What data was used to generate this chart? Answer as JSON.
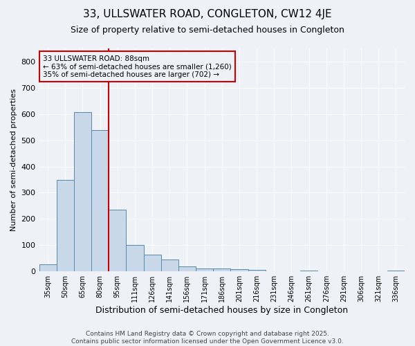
{
  "title": "33, ULLSWATER ROAD, CONGLETON, CW12 4JE",
  "subtitle": "Size of property relative to semi-detached houses in Congleton",
  "xlabel": "Distribution of semi-detached houses by size in Congleton",
  "ylabel": "Number of semi-detached properties",
  "footer_line1": "Contains HM Land Registry data © Crown copyright and database right 2025.",
  "footer_line2": "Contains public sector information licensed under the Open Government Licence v3.0.",
  "annotation_line1": "33 ULLSWATER ROAD: 88sqm",
  "annotation_line2": "← 63% of semi-detached houses are smaller (1,260)",
  "annotation_line3": "35% of semi-detached houses are larger (702) →",
  "bar_color": "#c8d8e8",
  "bar_edge_color": "#5588aa",
  "redline_color": "#cc0000",
  "annotation_box_color": "#cc0000",
  "background_color": "#eef2f7",
  "categories": [
    "35sqm",
    "50sqm",
    "65sqm",
    "80sqm",
    "95sqm",
    "111sqm",
    "126sqm",
    "141sqm",
    "156sqm",
    "171sqm",
    "186sqm",
    "201sqm",
    "216sqm",
    "231sqm",
    "246sqm",
    "261sqm",
    "276sqm",
    "291sqm",
    "306sqm",
    "321sqm",
    "336sqm"
  ],
  "values": [
    28,
    348,
    608,
    538,
    235,
    100,
    65,
    45,
    18,
    10,
    10,
    8,
    5,
    0,
    0,
    3,
    0,
    0,
    0,
    0,
    3
  ],
  "redline_x": 3.5,
  "ylim": [
    0,
    850
  ],
  "yticks": [
    0,
    100,
    200,
    300,
    400,
    500,
    600,
    700,
    800
  ],
  "figwidth": 6.0,
  "figheight": 5.0,
  "dpi": 100
}
